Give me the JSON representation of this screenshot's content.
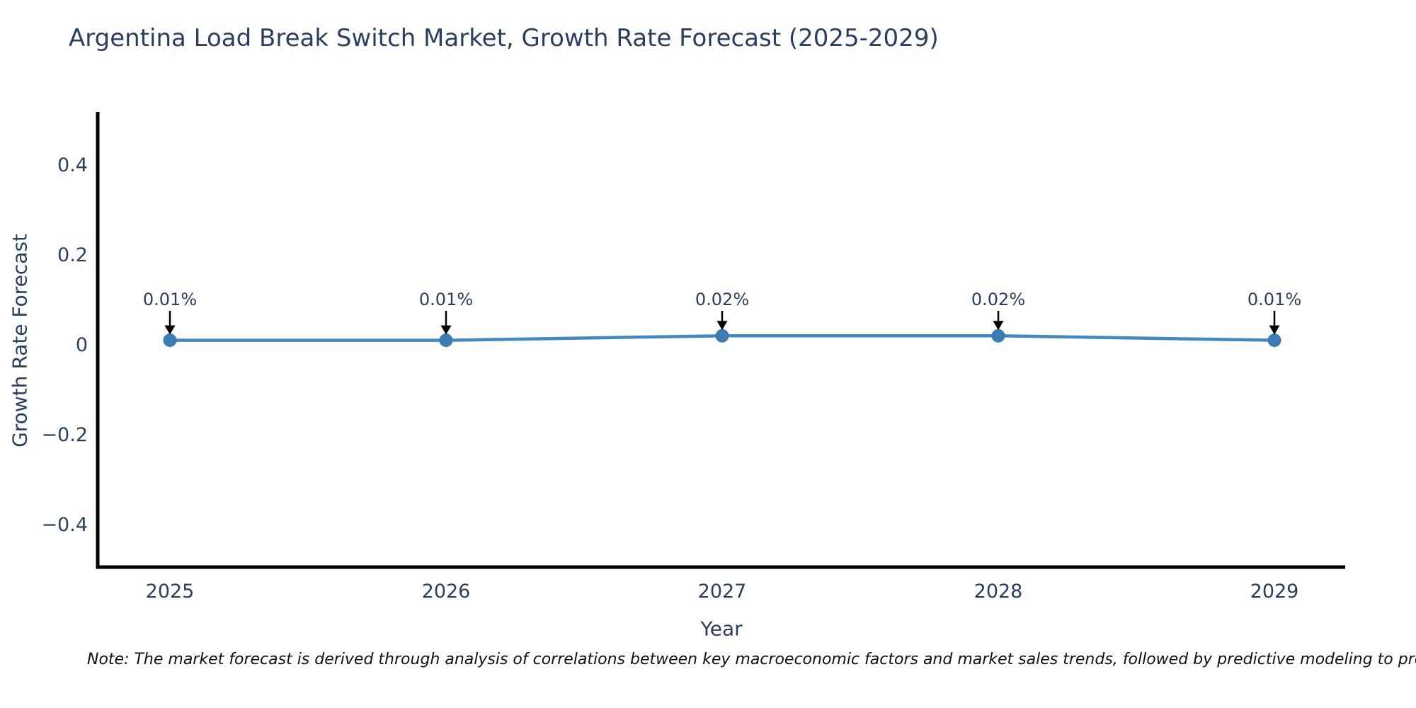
{
  "title": "Argentina Load Break Switch Market, Growth Rate Forecast (2025-2029)",
  "footnote": {
    "text": "Note: The market forecast is derived through analysis of correlations between key macroeconomic factors and market sales trends, followed by predictive modeling to project future sales."
  },
  "colors": {
    "background": "#ffffff",
    "title_text": "#2a3f5f",
    "tick_text": "#2a3f5f",
    "axis_line": "#000000",
    "series_line": "#4488c0",
    "marker_fill": "#3c7cb4",
    "annotation_text": "#2a3f5f",
    "annotation_arrow": "#000000",
    "note_text": "#111111"
  },
  "chart_data": {
    "type": "line",
    "title": "Argentina Load Break Switch Market, Growth Rate Forecast (2025-2029)",
    "xlabel": "Year",
    "ylabel": "Growth Rate Forecast",
    "categories": [
      "2025",
      "2026",
      "2027",
      "2028",
      "2029"
    ],
    "series": [
      {
        "name": "Growth Rate Forecast",
        "values": [
          0.01,
          0.01,
          0.02,
          0.02,
          0.01
        ],
        "point_labels": [
          "0.01%",
          "0.01%",
          "0.02%",
          "0.02%",
          "0.01%"
        ]
      }
    ],
    "ylim": [
      -0.494,
      0.515
    ],
    "yticks": [
      {
        "value": 0.4,
        "label": "0.4"
      },
      {
        "value": 0.2,
        "label": "0.2"
      },
      {
        "value": 0,
        "label": "0"
      },
      {
        "value": -0.2,
        "label": "−0.2"
      },
      {
        "value": -0.4,
        "label": "−0.4"
      }
    ],
    "grid": false,
    "legend": false,
    "markers": true,
    "annotations_with_arrows": true
  }
}
